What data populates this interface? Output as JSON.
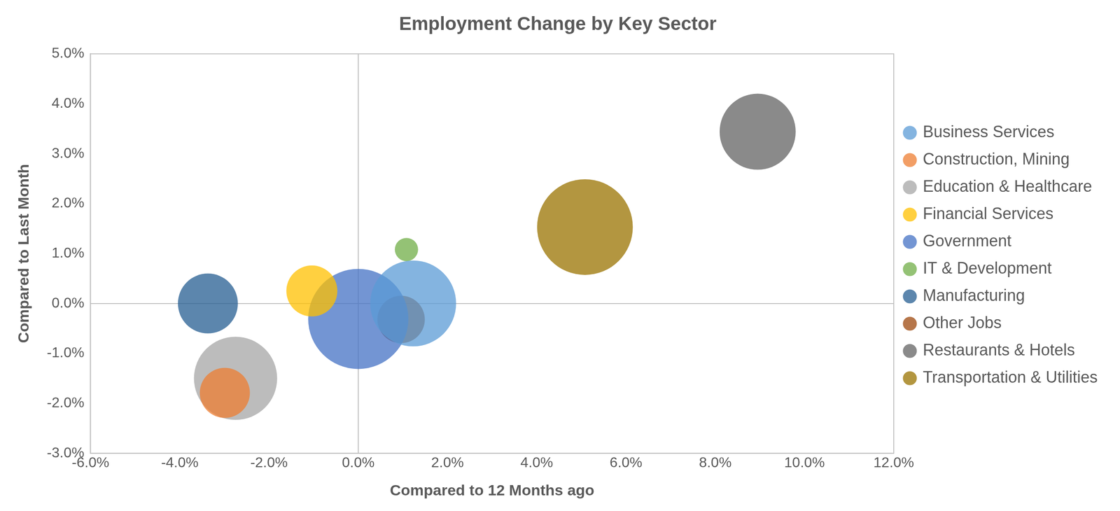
{
  "chart_data": {
    "type": "bubble",
    "title": "Employment Change by Key Sector",
    "x_label": "Compared to 12 Months ago",
    "y_label": "Compared to Last Month",
    "xlim": [
      -6,
      12
    ],
    "xticks": [
      {
        "value": -6,
        "label": "-6.0%"
      },
      {
        "value": -4,
        "label": "-4.0%"
      },
      {
        "value": -2,
        "label": "-2.0%"
      },
      {
        "value": 0,
        "label": "0.0%"
      },
      {
        "value": 2,
        "label": "2.0%"
      },
      {
        "value": 4,
        "label": "4.0%"
      },
      {
        "value": 6,
        "label": "6.0%"
      },
      {
        "value": 8,
        "label": "8.0%"
      },
      {
        "value": 10,
        "label": "10.0%"
      },
      {
        "value": 12,
        "label": "12.0%"
      }
    ],
    "ylim": [
      -3,
      5
    ],
    "yticks": [
      {
        "value": -3,
        "label": "-3.0%"
      },
      {
        "value": -2,
        "label": "-2.0%"
      },
      {
        "value": -1,
        "label": "-1.0%"
      },
      {
        "value": 0,
        "label": "0.0%"
      },
      {
        "value": 1,
        "label": "1.0%"
      },
      {
        "value": 2,
        "label": "2.0%"
      },
      {
        "value": 3,
        "label": "3.0%"
      },
      {
        "value": 4,
        "label": "4.0%"
      },
      {
        "value": 5,
        "label": "5.0%"
      }
    ],
    "grid": false,
    "legend": "right",
    "series": [
      {
        "name": "Business Services",
        "color": "#5b9bd5",
        "x": [
          1.23
        ],
        "values": [
          0.0
        ],
        "size": [
          96
        ]
      },
      {
        "name": "Construction, Mining",
        "color": "#ed7d31",
        "x": [
          -2.99
        ],
        "values": [
          -1.79
        ],
        "size": [
          56
        ]
      },
      {
        "name": "Education & Healthcare",
        "color": "#a5a5a5",
        "x": [
          -2.75
        ],
        "values": [
          -1.5
        ],
        "size": [
          93
        ]
      },
      {
        "name": "Financial Services",
        "color": "#ffc000",
        "x": [
          -1.04
        ],
        "values": [
          0.25
        ],
        "size": [
          57
        ]
      },
      {
        "name": "Government",
        "color": "#4472c4",
        "x": [
          0.0
        ],
        "values": [
          -0.31
        ],
        "size": [
          112
        ]
      },
      {
        "name": "IT & Development",
        "color": "#70ad47",
        "x": [
          1.08
        ],
        "values": [
          1.08
        ],
        "size": [
          26
        ]
      },
      {
        "name": "Manufacturing",
        "color": "#255e91",
        "x": [
          -3.37
        ],
        "values": [
          0.0
        ],
        "size": [
          67
        ]
      },
      {
        "name": "Other Jobs",
        "color": "#9e480e",
        "x": [
          0.96
        ],
        "values": [
          -0.32
        ],
        "size": [
          53
        ]
      },
      {
        "name": "Restaurants & Hotels",
        "color": "#636363",
        "x": [
          8.95
        ],
        "values": [
          3.44
        ],
        "size": [
          85
        ]
      },
      {
        "name": "Transportation & Utilities",
        "color": "#997300",
        "x": [
          5.08
        ],
        "values": [
          1.53
        ],
        "size": [
          107
        ]
      }
    ]
  }
}
